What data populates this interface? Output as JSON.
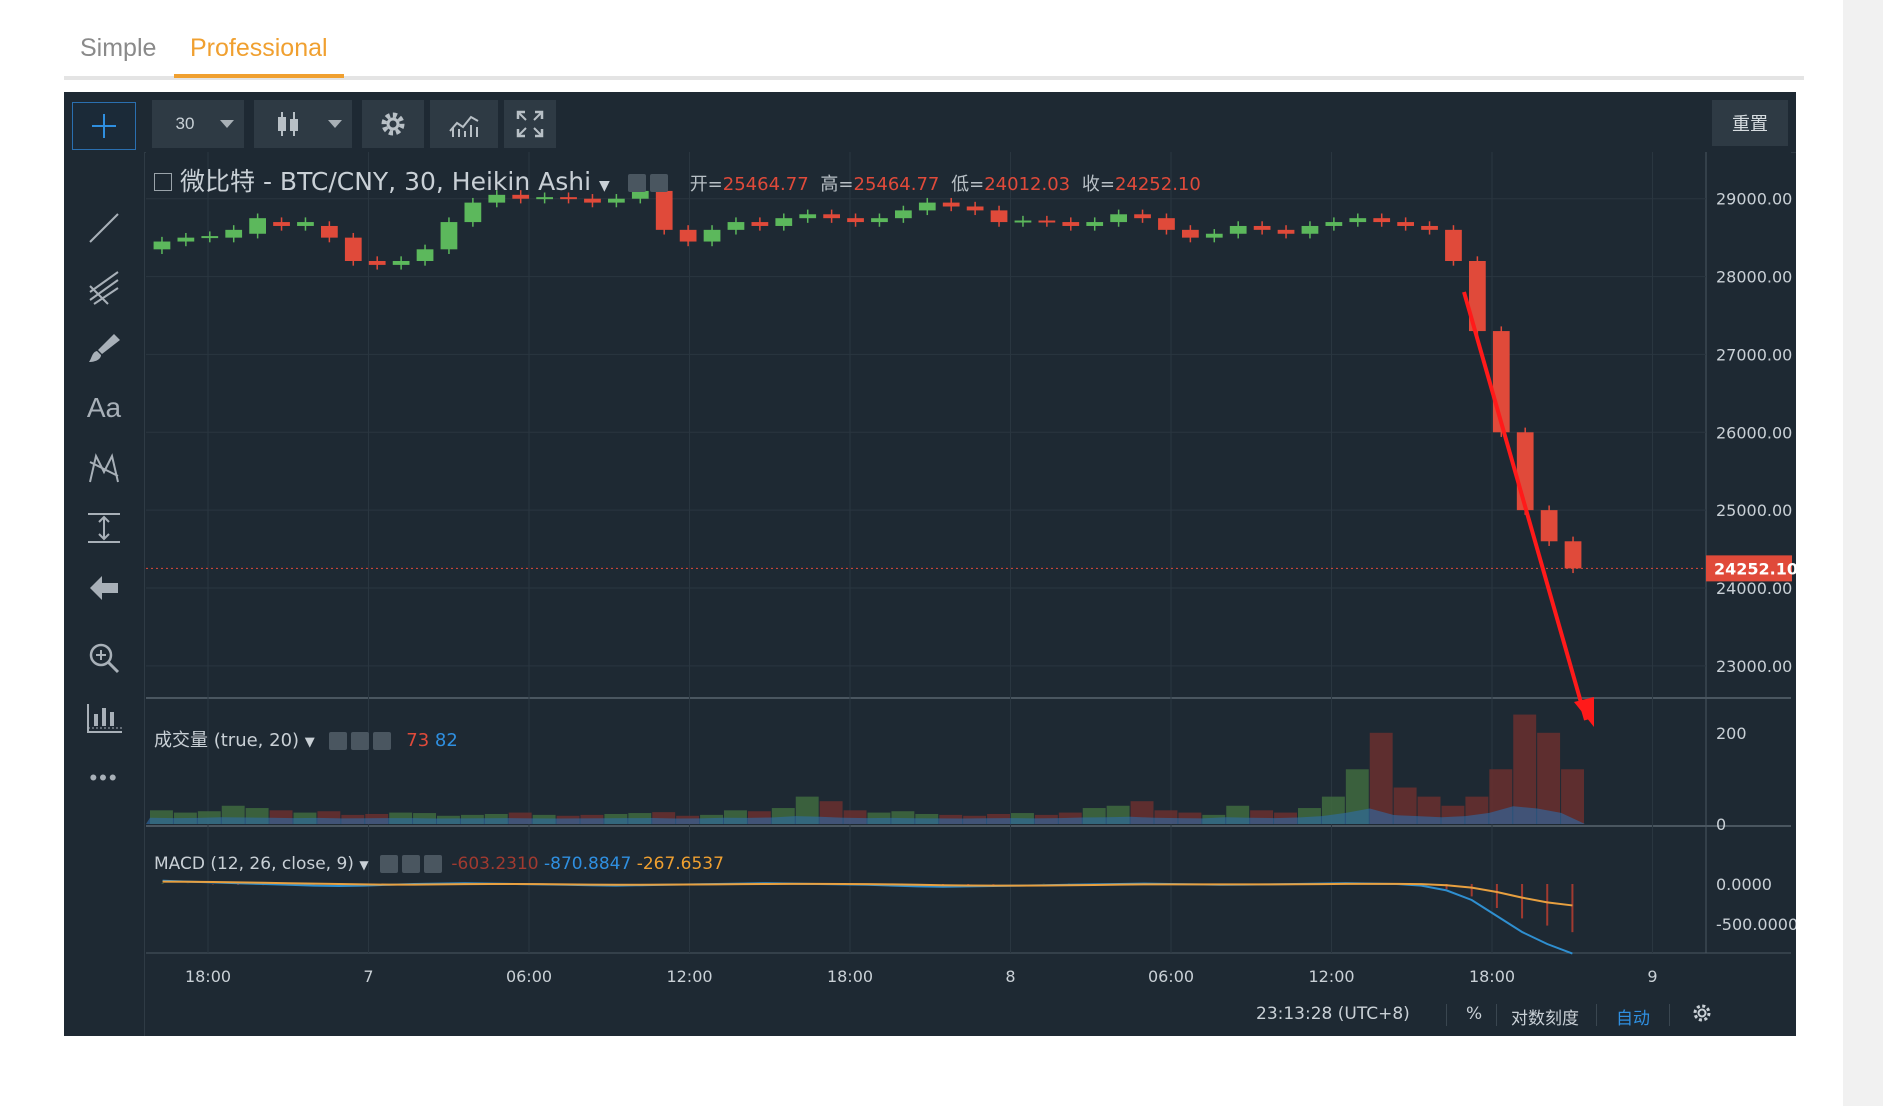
{
  "tabs": [
    {
      "label": "Simple",
      "active": false
    },
    {
      "label": "Professional",
      "active": true
    }
  ],
  "toolbar": {
    "interval": "30",
    "chart_style_icon": "candlestick-icon",
    "settings_icon": "gear-icon",
    "indicators_icon": "indicators-icon",
    "fullscreen_icon": "fullscreen-icon",
    "reset_label": "重置"
  },
  "left_tools": [
    {
      "name": "crosshair-icon"
    },
    {
      "name": "trendline-icon"
    },
    {
      "name": "pitchfork-icon"
    },
    {
      "name": "brush-icon"
    },
    {
      "name": "text-tool-icon",
      "label": "Aa"
    },
    {
      "name": "pattern-icon"
    },
    {
      "name": "measure-icon"
    },
    {
      "name": "arrow-left-icon"
    },
    {
      "name": "zoom-in-icon"
    },
    {
      "name": "long-position-icon"
    },
    {
      "name": "more-icon",
      "label": "•••"
    }
  ],
  "legend": {
    "title": "微比特 - BTC/CNY, 30, Heikin Ashi",
    "open_key": "开=",
    "open": "25464.77",
    "high_key": "高=",
    "high": "25464.77",
    "low_key": "低=",
    "low": "24012.03",
    "close_key": "收=",
    "close": "24252.10",
    "volume_title": "成交量 (true, 20)",
    "volume_v1": "73",
    "volume_v2": "82",
    "macd_title": "MACD (12, 26, close, 9)",
    "macd_v1": "-603.2310",
    "macd_v2": "-870.8847",
    "macd_v3": "-267.6537"
  },
  "status": {
    "time": "23:13:28 (UTC+8)",
    "percent": "%",
    "log": "对数刻度",
    "auto": "自动"
  },
  "colors": {
    "bg": "#1e2933",
    "grid": "#2a3640",
    "up": "#5cb85c",
    "down": "#e04a3a",
    "volume": "#2f6da8",
    "macd": "#2f8fd0",
    "signal": "#e8a040",
    "arrow": "#ff1a1a"
  },
  "chart_data": {
    "type": "candlestick",
    "symbol": "微比特 - BTC/CNY, 30, Heikin Ashi",
    "price_axis_ticks": [
      "29000.00",
      "28000.00",
      "27000.00",
      "26000.00",
      "25000.00",
      "24000.00",
      "23000.00"
    ],
    "last_price": "24252.10",
    "time_axis_ticks": [
      "18:00",
      "7",
      "06:00",
      "12:00",
      "18:00",
      "8",
      "06:00",
      "12:00",
      "18:00",
      "9"
    ],
    "volume_ticks": [
      "200",
      "0"
    ],
    "macd_ticks": [
      "0.0000",
      "-500.0000"
    ],
    "ylim": [
      22600,
      29600
    ],
    "candles_approx": [
      {
        "o": 28350,
        "c": 28450
      },
      {
        "o": 28450,
        "c": 28500
      },
      {
        "o": 28500,
        "c": 28520
      },
      {
        "o": 28500,
        "c": 28600
      },
      {
        "o": 28550,
        "c": 28750
      },
      {
        "o": 28700,
        "c": 28650
      },
      {
        "o": 28650,
        "c": 28700
      },
      {
        "o": 28650,
        "c": 28500
      },
      {
        "o": 28500,
        "c": 28200
      },
      {
        "o": 28200,
        "c": 28150
      },
      {
        "o": 28150,
        "c": 28200
      },
      {
        "o": 28200,
        "c": 28350
      },
      {
        "o": 28350,
        "c": 28700
      },
      {
        "o": 28700,
        "c": 28950
      },
      {
        "o": 28950,
        "c": 29050
      },
      {
        "o": 29050,
        "c": 29000
      },
      {
        "o": 29000,
        "c": 29020
      },
      {
        "o": 29020,
        "c": 29000
      },
      {
        "o": 29000,
        "c": 28950
      },
      {
        "o": 28950,
        "c": 29000
      },
      {
        "o": 29000,
        "c": 29100
      },
      {
        "o": 29100,
        "c": 28600
      },
      {
        "o": 28600,
        "c": 28450
      },
      {
        "o": 28450,
        "c": 28600
      },
      {
        "o": 28600,
        "c": 28700
      },
      {
        "o": 28700,
        "c": 28650
      },
      {
        "o": 28650,
        "c": 28750
      },
      {
        "o": 28750,
        "c": 28800
      },
      {
        "o": 28800,
        "c": 28750
      },
      {
        "o": 28750,
        "c": 28700
      },
      {
        "o": 28700,
        "c": 28750
      },
      {
        "o": 28750,
        "c": 28850
      },
      {
        "o": 28850,
        "c": 28950
      },
      {
        "o": 28950,
        "c": 28900
      },
      {
        "o": 28900,
        "c": 28850
      },
      {
        "o": 28850,
        "c": 28700
      },
      {
        "o": 28700,
        "c": 28720
      },
      {
        "o": 28720,
        "c": 28700
      },
      {
        "o": 28700,
        "c": 28650
      },
      {
        "o": 28650,
        "c": 28700
      },
      {
        "o": 28700,
        "c": 28800
      },
      {
        "o": 28800,
        "c": 28750
      },
      {
        "o": 28750,
        "c": 28600
      },
      {
        "o": 28600,
        "c": 28500
      },
      {
        "o": 28500,
        "c": 28550
      },
      {
        "o": 28550,
        "c": 28650
      },
      {
        "o": 28650,
        "c": 28600
      },
      {
        "o": 28600,
        "c": 28550
      },
      {
        "o": 28550,
        "c": 28650
      },
      {
        "o": 28650,
        "c": 28700
      },
      {
        "o": 28700,
        "c": 28750
      },
      {
        "o": 28750,
        "c": 28700
      },
      {
        "o": 28700,
        "c": 28650
      },
      {
        "o": 28650,
        "c": 28600
      },
      {
        "o": 28600,
        "c": 28200
      },
      {
        "o": 28200,
        "c": 27300
      },
      {
        "o": 27300,
        "c": 26000
      },
      {
        "o": 26000,
        "c": 25000
      },
      {
        "o": 25000,
        "c": 24600
      },
      {
        "o": 24600,
        "c": 24252
      }
    ],
    "volume_approx": [
      30,
      25,
      28,
      40,
      35,
      30,
      25,
      28,
      20,
      22,
      25,
      24,
      18,
      20,
      22,
      25,
      20,
      18,
      20,
      22,
      24,
      26,
      18,
      20,
      30,
      28,
      35,
      60,
      50,
      30,
      25,
      28,
      22,
      20,
      18,
      22,
      24,
      20,
      25,
      35,
      40,
      50,
      30,
      25,
      20,
      40,
      30,
      25,
      35,
      60,
      120,
      200,
      80,
      60,
      40,
      60,
      120,
      240,
      200,
      120
    ],
    "macd_approx": [
      40,
      30,
      20,
      10,
      0,
      -10,
      -20,
      -25,
      -20,
      -10,
      0,
      5,
      10,
      5,
      0,
      -5,
      -10,
      -15,
      -20,
      -15,
      -10,
      -5,
      0,
      5,
      10,
      5,
      0,
      -5,
      -10,
      -20,
      -30,
      -35,
      -30,
      -25,
      -20,
      -15,
      -10,
      -5,
      0,
      5,
      0,
      -5,
      -10,
      -8,
      -5,
      0,
      5,
      10,
      5,
      0,
      -20,
      -80,
      -200,
      -400,
      -600,
      -750,
      -870
    ],
    "signal_approx": [
      30,
      28,
      25,
      20,
      15,
      10,
      5,
      0,
      -5,
      -8,
      -8,
      -5,
      -2,
      0,
      0,
      -2,
      -5,
      -8,
      -10,
      -10,
      -8,
      -6,
      -4,
      -2,
      0,
      1,
      1,
      0,
      -2,
      -5,
      -10,
      -15,
      -18,
      -20,
      -20,
      -18,
      -15,
      -12,
      -8,
      -5,
      -4,
      -4,
      -5,
      -5,
      -4,
      -3,
      -1,
      1,
      2,
      2,
      -2,
      -15,
      -45,
      -100,
      -170,
      -230,
      -268
    ]
  }
}
